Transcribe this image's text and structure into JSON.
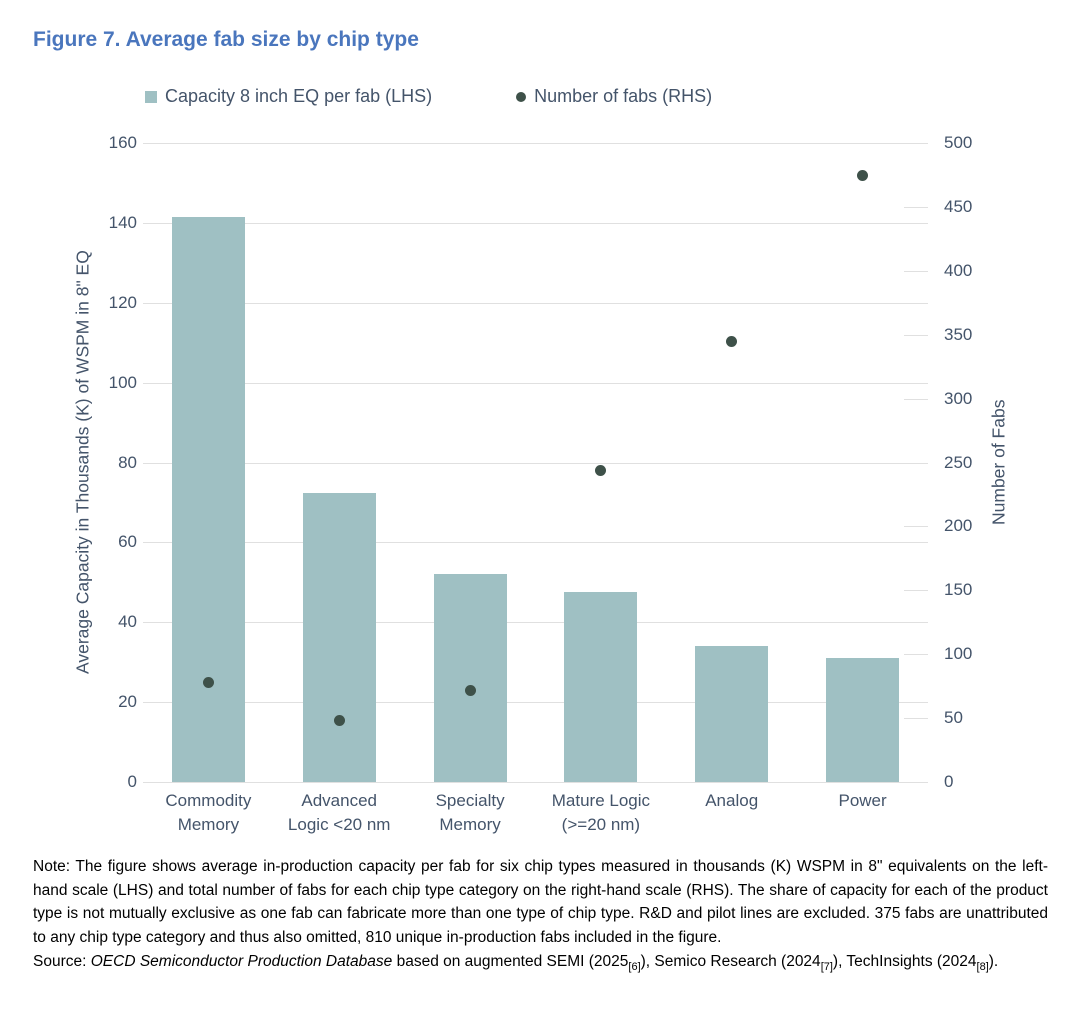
{
  "page": {
    "title": "Figure 7. Average fab size by chip type"
  },
  "colors": {
    "title_blue": "#4a76bd",
    "axis_text": "#44546a",
    "gridline": "#e0e0e0",
    "bar_teal": "#9fc0c3",
    "dot_dark": "#3e5149"
  },
  "chart_data": {
    "type": "bar",
    "title": "Figure 7. Average fab size by chip type",
    "categories": [
      [
        "Commodity",
        "Memory"
      ],
      [
        "Advanced",
        "Logic <20 nm"
      ],
      [
        "Specialty",
        "Memory"
      ],
      [
        "Mature Logic",
        "(>=20 nm)"
      ],
      [
        "Analog"
      ],
      [
        "Power"
      ]
    ],
    "series": [
      {
        "name": "Capacity 8 inch EQ per fab (LHS)",
        "type": "bar",
        "axis": "left",
        "color": "#9fc0c3",
        "values": [
          141.5,
          72.5,
          52,
          47.5,
          34,
          31
        ]
      },
      {
        "name": "Number of fabs (RHS)",
        "type": "scatter",
        "axis": "right",
        "color": "#3e5149",
        "values": [
          78,
          48,
          72,
          244,
          345,
          475
        ]
      }
    ],
    "left_axis": {
      "label": "Average Capacity in Thousands (K) of WSPM in 8\" EQ",
      "min": 0,
      "max": 160,
      "tick_step": 20,
      "ticks": [
        0,
        20,
        40,
        60,
        80,
        100,
        120,
        140,
        160
      ]
    },
    "right_axis": {
      "label": "Number of Fabs",
      "min": 0,
      "max": 500,
      "tick_step": 50,
      "ticks": [
        0,
        50,
        100,
        150,
        200,
        250,
        300,
        350,
        400,
        450,
        500
      ]
    },
    "grid": "horizontal",
    "legend_position": "top"
  },
  "note": {
    "text": "Note: The figure shows average in-production capacity per fab for six chip types measured in thousands (K) WSPM in 8\" equivalents on the left-hand scale (LHS) and total number of fabs for each chip type category on the right-hand scale (RHS). The share of capacity for each of the product type is not mutually exclusive as one fab can fabricate more than one type of chip type. R&D and pilot lines are excluded. 375 fabs are unattributed to any chip type category and thus also omitted, 810 unique in-production fabs included in the figure."
  },
  "source": {
    "segments": [
      {
        "text": "Source: ",
        "style": "normal"
      },
      {
        "text": "OECD Semiconductor Production Database",
        "style": "italic"
      },
      {
        "text": " based on augmented SEMI (2025",
        "style": "normal"
      },
      {
        "text": "[6]",
        "style": "sub"
      },
      {
        "text": "), Semico Research (2024",
        "style": "normal"
      },
      {
        "text": "[7]",
        "style": "sub"
      },
      {
        "text": "), TechInsights (2024",
        "style": "normal"
      },
      {
        "text": "[8]",
        "style": "sub"
      },
      {
        "text": ").",
        "style": "normal"
      }
    ]
  }
}
